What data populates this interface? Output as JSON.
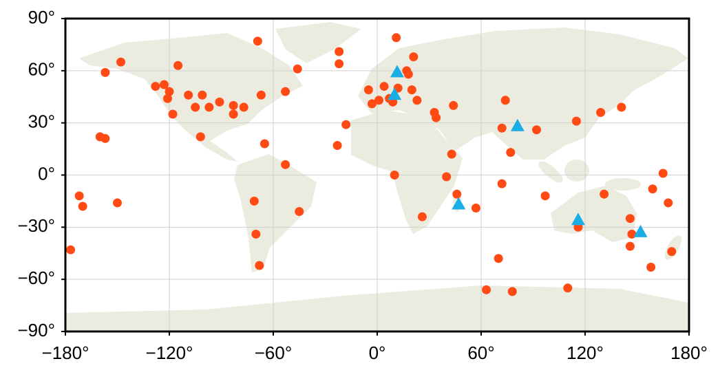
{
  "chart_data": {
    "type": "scatter",
    "xlim": [
      -180,
      180
    ],
    "ylim": [
      -90,
      90
    ],
    "xticks": [
      {
        "value": -180,
        "label": "−180°"
      },
      {
        "value": -120,
        "label": "−120°"
      },
      {
        "value": -60,
        "label": "−60°"
      },
      {
        "value": 0,
        "label": "0°"
      },
      {
        "value": 60,
        "label": "60°"
      },
      {
        "value": 120,
        "label": "120°"
      },
      {
        "value": 180,
        "label": "180°"
      }
    ],
    "yticks": [
      {
        "value": -90,
        "label": "−90°"
      },
      {
        "value": -60,
        "label": "−60°"
      },
      {
        "value": -30,
        "label": "−30°"
      },
      {
        "value": 0,
        "label": "0°"
      },
      {
        "value": 30,
        "label": "30°"
      },
      {
        "value": 60,
        "label": "60°"
      },
      {
        "value": 90,
        "label": "90°"
      }
    ],
    "grid": true,
    "series": [
      {
        "marker": "circle",
        "color": "#ff4a14",
        "x": [
          -177,
          -172,
          -170,
          -160,
          -157,
          -157,
          -148,
          -150,
          -128,
          -123,
          -120,
          -121,
          -115,
          -118,
          -109,
          -101,
          -105,
          -97,
          -91,
          -83,
          -83,
          -77,
          -102,
          -69,
          -67,
          -65,
          -53,
          -71,
          -70,
          -68,
          -45,
          -53,
          -46,
          -22,
          -22,
          -18,
          -23,
          -5,
          -3,
          1,
          4,
          7,
          9,
          11,
          12,
          17,
          18,
          21,
          20,
          23,
          10,
          26,
          33,
          34,
          44,
          43,
          40,
          46,
          57,
          72,
          74,
          72,
          77,
          70,
          63,
          78,
          92,
          97,
          110,
          115,
          116,
          129,
          131,
          141,
          146,
          147,
          146,
          158,
          159,
          165,
          168,
          170
        ],
        "values": [
          -43,
          -12,
          -18,
          22,
          21,
          59,
          65,
          -16,
          51,
          52,
          48,
          44,
          63,
          35,
          46,
          46,
          39,
          39,
          42,
          40,
          35,
          39,
          22,
          77,
          46,
          18,
          6,
          -15,
          -34,
          -52,
          -21,
          48,
          61,
          71,
          64,
          29,
          17,
          49,
          41,
          43,
          51,
          44,
          42,
          79,
          50,
          60,
          58,
          68,
          49,
          43,
          0,
          -24,
          36,
          33,
          40,
          12,
          -1,
          -11,
          -19,
          -5,
          43,
          27,
          13,
          -48,
          -66,
          -67,
          26,
          -12,
          -65,
          31,
          -30,
          36,
          -11,
          39,
          -25,
          -34,
          -41,
          -53,
          -8,
          1,
          -16,
          -44
        ]
      },
      {
        "marker": "triangle",
        "color": "#1aaee6",
        "x": [
          11.5,
          10,
          47,
          81,
          116,
          152
        ],
        "values": [
          59,
          46,
          -17,
          28,
          -26,
          -33
        ]
      }
    ]
  }
}
